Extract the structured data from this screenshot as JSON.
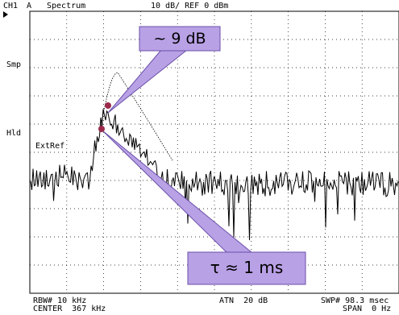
{
  "header": {
    "channel": "CH1",
    "trace": "A",
    "mode": "Spectrum",
    "scale_ref": "10 dB/ REF 0 dBm"
  },
  "side_labels": {
    "smp": "Smp",
    "hld": "Hld",
    "ext_ref": "ExtRef"
  },
  "footer": {
    "rbw": "RBW# 10 kHz",
    "center": "CENTER  367 kHz",
    "atn": "ATN  20 dB",
    "swp": "SWP# 98.3 msec",
    "span": "SPAN  0 Hz"
  },
  "annotations": {
    "peak_label": "~ 9 dB",
    "tau_label": "τ ≈ 1 ms"
  },
  "colors": {
    "callout_fill": "#b9a1e6",
    "callout_stroke": "#6a4fa8",
    "marker": "#9b2a4a",
    "trace": "#000000",
    "grid": "#000000"
  }
}
